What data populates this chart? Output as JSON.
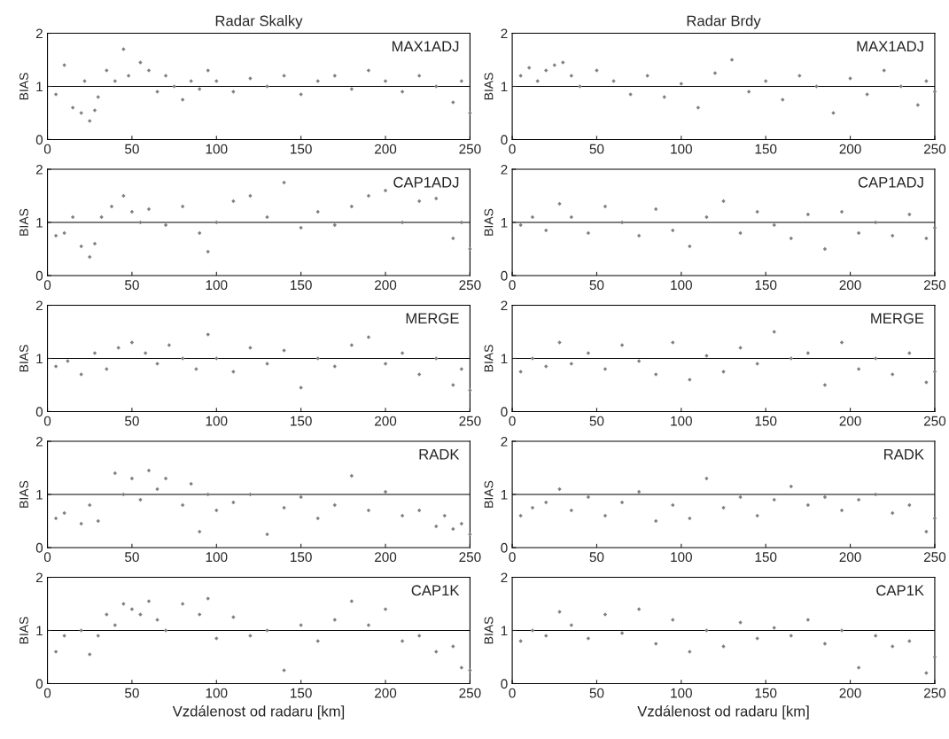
{
  "chart_data": [
    {
      "type": "scatter",
      "title": "Radar Skalky",
      "ylabel": "BIAS",
      "annotations": [
        "MAX1ADJ"
      ],
      "color": "#808080",
      "marker": "diamond",
      "xlim": [
        0,
        250
      ],
      "ylim": [
        0,
        2
      ],
      "xticks": [
        0,
        50,
        100,
        150,
        200,
        250
      ],
      "yticks": [
        0,
        1,
        2
      ],
      "ref_lines": [
        {
          "axis": "y",
          "value": 1,
          "color": "#000000"
        }
      ],
      "x": [
        5,
        10,
        15,
        20,
        22,
        25,
        28,
        30,
        35,
        40,
        45,
        48,
        55,
        60,
        65,
        70,
        75,
        80,
        85,
        90,
        95,
        100,
        110,
        120,
        130,
        140,
        150,
        160,
        170,
        180,
        190,
        200,
        210,
        220,
        230,
        240,
        245,
        250
      ],
      "values": [
        0.85,
        1.4,
        0.6,
        0.5,
        1.1,
        0.35,
        0.55,
        0.8,
        1.3,
        1.1,
        1.7,
        1.2,
        1.45,
        1.3,
        0.9,
        1.2,
        1.0,
        0.75,
        1.1,
        0.95,
        1.3,
        1.1,
        0.9,
        1.15,
        1.0,
        1.2,
        0.85,
        1.1,
        1.2,
        0.95,
        1.3,
        1.1,
        0.9,
        1.2,
        1.0,
        0.7,
        1.1,
        0.5
      ]
    },
    {
      "type": "scatter",
      "title": "Radar Brdy",
      "ylabel": "BIAS",
      "annotations": [
        "MAX1ADJ"
      ],
      "color": "#808080",
      "marker": "diamond",
      "xlim": [
        0,
        250
      ],
      "ylim": [
        0,
        2
      ],
      "xticks": [
        0,
        50,
        100,
        150,
        200,
        250
      ],
      "yticks": [
        0,
        1,
        2
      ],
      "ref_lines": [
        {
          "axis": "y",
          "value": 1,
          "color": "#000000"
        }
      ],
      "x": [
        5,
        10,
        15,
        20,
        25,
        30,
        35,
        40,
        50,
        60,
        70,
        80,
        90,
        100,
        110,
        120,
        130,
        140,
        150,
        160,
        170,
        180,
        190,
        200,
        210,
        220,
        230,
        240,
        245,
        250
      ],
      "values": [
        1.2,
        1.35,
        1.1,
        1.3,
        1.4,
        1.45,
        1.2,
        1.0,
        1.3,
        1.1,
        0.85,
        1.2,
        0.8,
        1.05,
        0.6,
        1.25,
        1.5,
        0.9,
        1.1,
        0.75,
        1.2,
        1.0,
        0.5,
        1.15,
        0.85,
        1.3,
        1.0,
        0.65,
        1.1,
        0.9
      ]
    },
    {
      "type": "scatter",
      "ylabel": "BIAS",
      "annotations": [
        "CAP1ADJ"
      ],
      "color": "#808080",
      "marker": "diamond",
      "xlim": [
        0,
        250
      ],
      "ylim": [
        0,
        2
      ],
      "xticks": [
        0,
        50,
        100,
        150,
        200,
        250
      ],
      "yticks": [
        0,
        1,
        2
      ],
      "ref_lines": [
        {
          "axis": "y",
          "value": 1,
          "color": "#000000"
        }
      ],
      "x": [
        5,
        10,
        15,
        20,
        25,
        28,
        32,
        38,
        45,
        50,
        55,
        60,
        70,
        80,
        90,
        95,
        100,
        110,
        120,
        130,
        140,
        150,
        160,
        170,
        180,
        190,
        200,
        210,
        220,
        230,
        240,
        245,
        250
      ],
      "values": [
        0.75,
        0.8,
        1.1,
        0.55,
        0.35,
        0.6,
        1.1,
        1.3,
        1.5,
        1.2,
        1.0,
        1.25,
        0.95,
        1.3,
        0.8,
        0.45,
        1.0,
        1.4,
        1.5,
        1.1,
        1.75,
        0.9,
        1.2,
        0.95,
        1.3,
        1.5,
        1.6,
        1.0,
        1.4,
        1.45,
        0.7,
        1.0,
        0.5
      ]
    },
    {
      "type": "scatter",
      "ylabel": "BIAS",
      "annotations": [
        "CAP1ADJ"
      ],
      "color": "#808080",
      "marker": "diamond",
      "xlim": [
        0,
        250
      ],
      "ylim": [
        0,
        2
      ],
      "xticks": [
        0,
        50,
        100,
        150,
        200,
        250
      ],
      "yticks": [
        0,
        1,
        2
      ],
      "ref_lines": [
        {
          "axis": "y",
          "value": 1,
          "color": "#000000"
        }
      ],
      "x": [
        5,
        12,
        20,
        28,
        35,
        45,
        55,
        65,
        75,
        85,
        95,
        105,
        115,
        125,
        135,
        145,
        155,
        165,
        175,
        185,
        195,
        205,
        215,
        225,
        235,
        245,
        250
      ],
      "values": [
        0.95,
        1.1,
        0.85,
        1.35,
        1.1,
        0.8,
        1.3,
        1.0,
        0.75,
        1.25,
        0.85,
        0.55,
        1.1,
        1.4,
        0.8,
        1.2,
        0.95,
        0.7,
        1.15,
        0.5,
        1.2,
        0.8,
        1.0,
        0.75,
        1.15,
        0.7,
        0.9
      ]
    },
    {
      "type": "scatter",
      "ylabel": "BIAS",
      "annotations": [
        "MERGE"
      ],
      "color": "#808080",
      "marker": "diamond",
      "xlim": [
        0,
        250
      ],
      "ylim": [
        0,
        2
      ],
      "xticks": [
        0,
        50,
        100,
        150,
        200,
        250
      ],
      "yticks": [
        0,
        1,
        2
      ],
      "ref_lines": [
        {
          "axis": "y",
          "value": 1,
          "color": "#000000"
        }
      ],
      "x": [
        5,
        12,
        20,
        28,
        35,
        42,
        50,
        58,
        65,
        72,
        80,
        88,
        95,
        100,
        110,
        120,
        130,
        140,
        150,
        160,
        170,
        180,
        190,
        200,
        210,
        220,
        230,
        240,
        245,
        250
      ],
      "values": [
        0.85,
        0.95,
        0.7,
        1.1,
        0.8,
        1.2,
        1.3,
        1.1,
        0.9,
        1.25,
        1.0,
        0.8,
        1.45,
        1.0,
        0.75,
        1.2,
        0.9,
        1.15,
        0.45,
        1.0,
        0.85,
        1.25,
        1.4,
        0.9,
        1.1,
        0.7,
        1.0,
        0.5,
        0.8,
        0.4
      ]
    },
    {
      "type": "scatter",
      "ylabel": "BIAS",
      "annotations": [
        "MERGE"
      ],
      "color": "#808080",
      "marker": "diamond",
      "xlim": [
        0,
        250
      ],
      "ylim": [
        0,
        2
      ],
      "xticks": [
        0,
        50,
        100,
        150,
        200,
        250
      ],
      "yticks": [
        0,
        1,
        2
      ],
      "ref_lines": [
        {
          "axis": "y",
          "value": 1,
          "color": "#000000"
        }
      ],
      "x": [
        5,
        12,
        20,
        28,
        35,
        45,
        55,
        65,
        75,
        85,
        95,
        105,
        115,
        125,
        135,
        145,
        155,
        165,
        175,
        185,
        195,
        205,
        215,
        225,
        235,
        245,
        250
      ],
      "values": [
        0.75,
        1.0,
        0.85,
        1.3,
        0.9,
        1.1,
        0.8,
        1.25,
        0.95,
        0.7,
        1.3,
        0.6,
        1.05,
        0.75,
        1.2,
        0.9,
        1.5,
        1.0,
        1.1,
        0.5,
        1.3,
        0.8,
        1.0,
        0.7,
        1.1,
        0.55,
        0.75
      ]
    },
    {
      "type": "scatter",
      "ylabel": "BIAS",
      "annotations": [
        "RADK"
      ],
      "color": "#808080",
      "marker": "diamond",
      "xlim": [
        0,
        250
      ],
      "ylim": [
        0,
        2
      ],
      "xticks": [
        0,
        50,
        100,
        150,
        200,
        250
      ],
      "yticks": [
        0,
        1,
        2
      ],
      "ref_lines": [
        {
          "axis": "y",
          "value": 1,
          "color": "#000000"
        }
      ],
      "x": [
        5,
        10,
        20,
        25,
        30,
        40,
        45,
        50,
        55,
        60,
        65,
        70,
        80,
        85,
        90,
        95,
        100,
        110,
        120,
        130,
        140,
        150,
        160,
        170,
        180,
        190,
        200,
        210,
        220,
        230,
        235,
        240,
        245,
        250
      ],
      "values": [
        0.55,
        0.65,
        0.45,
        0.8,
        0.5,
        1.4,
        1.0,
        1.3,
        0.9,
        1.45,
        1.1,
        1.3,
        0.8,
        1.2,
        0.3,
        1.0,
        0.7,
        0.85,
        1.0,
        0.25,
        0.75,
        0.95,
        0.55,
        0.8,
        1.35,
        0.7,
        1.05,
        0.6,
        0.7,
        0.4,
        0.6,
        0.35,
        0.45,
        0.25
      ]
    },
    {
      "type": "scatter",
      "ylabel": "BIAS",
      "annotations": [
        "RADK"
      ],
      "color": "#808080",
      "marker": "diamond",
      "xlim": [
        0,
        250
      ],
      "ylim": [
        0,
        2
      ],
      "xticks": [
        0,
        50,
        100,
        150,
        200,
        250
      ],
      "yticks": [
        0,
        1,
        2
      ],
      "ref_lines": [
        {
          "axis": "y",
          "value": 1,
          "color": "#000000"
        }
      ],
      "x": [
        5,
        12,
        20,
        28,
        35,
        45,
        55,
        65,
        75,
        85,
        95,
        105,
        115,
        125,
        135,
        145,
        155,
        165,
        175,
        185,
        195,
        205,
        215,
        225,
        235,
        245,
        250
      ],
      "values": [
        0.6,
        0.75,
        0.85,
        1.1,
        0.7,
        0.95,
        0.6,
        0.85,
        1.05,
        0.5,
        0.8,
        0.55,
        1.3,
        0.75,
        0.95,
        0.6,
        0.9,
        1.15,
        0.8,
        0.95,
        0.7,
        0.9,
        1.0,
        0.65,
        0.8,
        0.3,
        0.55
      ]
    },
    {
      "type": "scatter",
      "ylabel": "BIAS",
      "xlabel": "Vzdálenost od radaru [km]",
      "annotations": [
        "CAP1K"
      ],
      "color": "#808080",
      "marker": "diamond",
      "xlim": [
        0,
        250
      ],
      "ylim": [
        0,
        2
      ],
      "xticks": [
        0,
        50,
        100,
        150,
        200,
        250
      ],
      "yticks": [
        0,
        1,
        2
      ],
      "ref_lines": [
        {
          "axis": "y",
          "value": 1,
          "color": "#000000"
        }
      ],
      "x": [
        5,
        10,
        20,
        25,
        30,
        35,
        40,
        45,
        50,
        55,
        60,
        65,
        70,
        80,
        90,
        95,
        100,
        110,
        120,
        130,
        140,
        150,
        160,
        170,
        180,
        190,
        200,
        210,
        220,
        230,
        240,
        245,
        250
      ],
      "values": [
        0.6,
        0.9,
        1.0,
        0.55,
        0.9,
        1.3,
        1.1,
        1.5,
        1.4,
        1.3,
        1.55,
        1.2,
        1.0,
        1.5,
        1.3,
        1.6,
        0.85,
        1.25,
        0.9,
        1.0,
        0.25,
        1.1,
        0.8,
        1.2,
        1.55,
        1.1,
        1.4,
        0.8,
        0.9,
        0.6,
        0.7,
        0.3,
        0.25
      ]
    },
    {
      "type": "scatter",
      "ylabel": "BIAS",
      "xlabel": "Vzdálenost od radaru [km]",
      "annotations": [
        "CAP1K"
      ],
      "color": "#808080",
      "marker": "diamond",
      "xlim": [
        0,
        250
      ],
      "ylim": [
        0,
        2
      ],
      "xticks": [
        0,
        50,
        100,
        150,
        200,
        250
      ],
      "yticks": [
        0,
        1,
        2
      ],
      "ref_lines": [
        {
          "axis": "y",
          "value": 1,
          "color": "#000000"
        }
      ],
      "x": [
        5,
        12,
        20,
        28,
        35,
        45,
        55,
        65,
        75,
        85,
        95,
        105,
        115,
        125,
        135,
        145,
        155,
        165,
        175,
        185,
        195,
        205,
        215,
        225,
        235,
        245,
        250
      ],
      "values": [
        0.8,
        1.0,
        0.9,
        1.35,
        1.1,
        0.85,
        1.3,
        0.95,
        1.4,
        0.75,
        1.2,
        0.6,
        1.0,
        0.7,
        1.15,
        0.85,
        1.05,
        0.9,
        1.2,
        0.75,
        1.0,
        0.3,
        0.9,
        0.7,
        0.8,
        0.2,
        0.5
      ]
    }
  ]
}
